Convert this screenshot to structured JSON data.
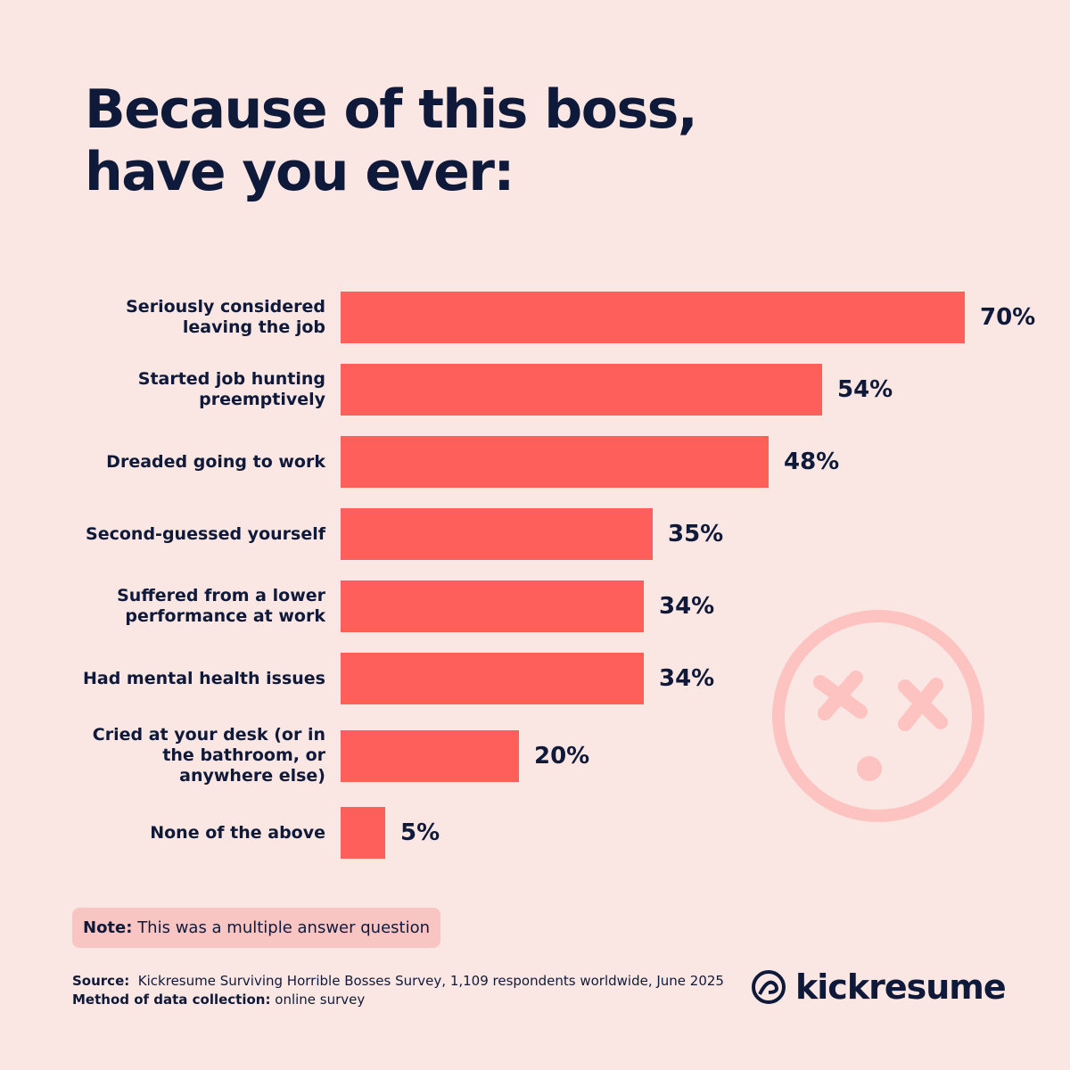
{
  "chart_data": {
    "type": "bar",
    "orientation": "horizontal",
    "title": "Because of this boss, have you ever:",
    "categories": [
      "Seriously considered leaving the job",
      "Started job hunting preemptively",
      "Dreaded going to work",
      "Second-guessed yourself",
      "Suffered from a lower performance at work",
      "Had mental health issues",
      "Cried at your desk (or in the bathroom, or anywhere else)",
      "None of the above"
    ],
    "values": [
      70,
      54,
      48,
      35,
      34,
      34,
      20,
      5
    ],
    "value_labels": [
      "70%",
      "54%",
      "48%",
      "35%",
      "34%",
      "34%",
      "20%",
      "5%"
    ],
    "color": "#ff5f5a",
    "note_label": "Note:",
    "note": "This was a multiple answer question",
    "source_label": "Source:",
    "source": "Kickresume Surviving Horrible Bosses Survey, 1,109 respondents worldwide, June 2025",
    "method_label": "Method of data collection:",
    "method": "online survey",
    "brand": "kickresume"
  }
}
